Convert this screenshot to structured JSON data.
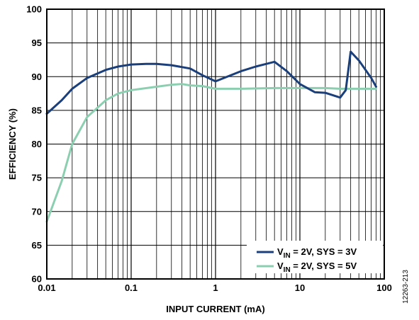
{
  "chart_data": {
    "type": "line",
    "xlabel": "INPUT CURRENT (mA)",
    "ylabel": "EFFICIENCY (%)",
    "xscale": "log",
    "xlim": [
      0.01,
      100
    ],
    "ylim": [
      60,
      100
    ],
    "xticks": [
      0.01,
      0.1,
      1,
      10,
      100
    ],
    "xtick_labels": [
      "0.01",
      "0.1",
      "1",
      "10",
      "100"
    ],
    "yticks": [
      60,
      65,
      70,
      75,
      80,
      85,
      90,
      95,
      100
    ],
    "ytick_labels": [
      "60",
      "65",
      "70",
      "75",
      "80",
      "85",
      "90",
      "95",
      "100"
    ],
    "grid": true,
    "legend_position": "bottom-right",
    "figure_number": "12263-213",
    "series": [
      {
        "label_main": "V",
        "label_sub": "IN",
        "label_rest": " = 2V, SYS = 3V",
        "color": "#1b3f7a",
        "x": [
          0.01,
          0.015,
          0.02,
          0.03,
          0.05,
          0.07,
          0.1,
          0.15,
          0.2,
          0.3,
          0.5,
          0.7,
          1,
          2,
          3,
          5,
          7,
          10,
          15,
          20,
          30,
          35,
          40,
          50,
          60,
          70,
          80
        ],
        "y": [
          84.5,
          86.5,
          88.2,
          89.8,
          91.0,
          91.5,
          91.8,
          91.9,
          91.9,
          91.7,
          91.2,
          90.2,
          89.3,
          90.8,
          91.5,
          92.2,
          90.8,
          88.9,
          87.7,
          87.6,
          86.9,
          88.0,
          93.7,
          92.4,
          91.0,
          89.8,
          88.5
        ]
      },
      {
        "label_main": "V",
        "label_sub": "IN",
        "label_rest": " = 2V, SYS = 5V",
        "color": "#8ccfb0",
        "x": [
          0.01,
          0.015,
          0.02,
          0.03,
          0.05,
          0.07,
          0.1,
          0.2,
          0.3,
          0.4,
          0.5,
          0.7,
          1,
          2,
          5,
          10,
          20,
          30,
          40,
          50,
          70,
          80
        ],
        "y": [
          68.5,
          74.5,
          80.0,
          84.0,
          86.5,
          87.5,
          88.0,
          88.5,
          88.8,
          88.9,
          88.7,
          88.6,
          88.2,
          88.2,
          88.3,
          88.3,
          88.3,
          88.2,
          88.2,
          88.2,
          88.2,
          88.2
        ]
      }
    ]
  }
}
